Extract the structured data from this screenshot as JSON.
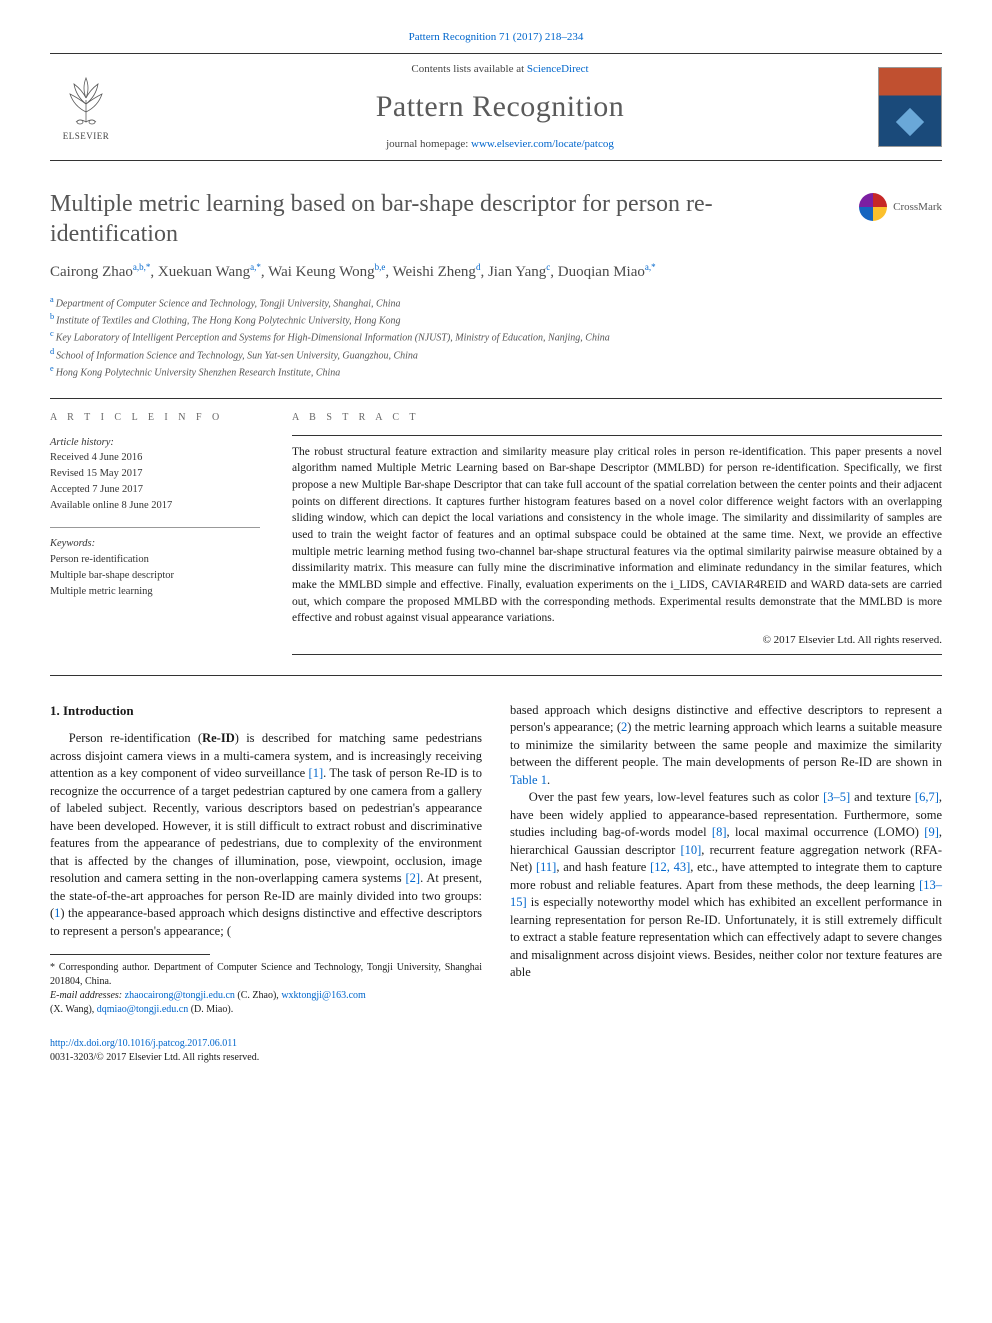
{
  "header": {
    "citation": "Pattern Recognition 71 (2017) 218–234",
    "contents_line_prefix": "Contents lists available at ",
    "contents_link": "ScienceDirect",
    "journal_title": "Pattern Recognition",
    "homepage_prefix": "journal homepage: ",
    "homepage_link": "www.elsevier.com/locate/patcog",
    "publisher": "ELSEVIER"
  },
  "crossmark": {
    "label": "CrossMark"
  },
  "title": "Multiple metric learning based on bar-shape descriptor for person re-identification",
  "authors_html": "Cairong Zhao<sup>a,b,*</sup>, Xuekuan Wang<sup>a,*</sup>, Wai Keung Wong<sup>b,e</sup>, Weishi Zheng<sup>d</sup>, Jian Yang<sup>c</sup>, Duoqian Miao<sup>a,*</sup>",
  "affiliations": [
    {
      "sup": "a",
      "text": "Department of Computer Science and Technology, Tongji University, Shanghai, China"
    },
    {
      "sup": "b",
      "text": "Institute of Textiles and Clothing, The Hong Kong Polytechnic University, Hong Kong"
    },
    {
      "sup": "c",
      "text": "Key Laboratory of Intelligent Perception and Systems for High-Dimensional Information (NJUST), Ministry of Education, Nanjing, China"
    },
    {
      "sup": "d",
      "text": "School of Information Science and Technology, Sun Yat-sen University, Guangzhou, China"
    },
    {
      "sup": "e",
      "text": "Hong Kong Polytechnic University Shenzhen Research Institute, China"
    }
  ],
  "article_info": {
    "label": "A R T I C L E   I N F O",
    "history_label": "Article history:",
    "received": "Received 4 June 2016",
    "revised": "Revised 15 May 2017",
    "accepted": "Accepted 7 June 2017",
    "online": "Available online 8 June 2017",
    "keywords_label": "Keywords:",
    "keywords": [
      "Person re-identification",
      "Multiple bar-shape descriptor",
      "Multiple metric learning"
    ]
  },
  "abstract": {
    "label": "A B S T R A C T",
    "text": "The robust structural feature extraction and similarity measure play critical roles in person re-identification. This paper presents a novel algorithm named Multiple Metric Learning based on Bar-shape Descriptor (MMLBD) for person re-identification. Specifically, we first propose a new Multiple Bar-shape Descriptor that can take full account of the spatial correlation between the center points and their adjacent points on different directions. It captures further histogram features based on a novel color difference weight factors with an overlapping sliding window, which can depict the local variations and consistency in the whole image. The similarity and dissimilarity of samples are used to train the weight factor of features and an optimal subspace could be obtained at the same time. Next, we provide an effective multiple metric learning method fusing two-channel bar-shape structural features via the optimal similarity pairwise measure obtained by a dissimilarity matrix. This measure can fully mine the discriminative information and eliminate redundancy in the similar features, which make the MMLBD simple and effective. Finally, evaluation experiments on the i_LIDS, CAVIAR4REID and WARD data-sets are carried out, which compare the proposed MMLBD with the corresponding methods. Experimental results demonstrate that the MMLBD is more effective and robust against visual appearance variations.",
    "copyright": "© 2017 Elsevier Ltd. All rights reserved."
  },
  "intro": {
    "heading": "1. Introduction",
    "para1_a": "Person re-identification (",
    "para1_bold": "Re-ID",
    "para1_b": ") is described for matching same pedestrians across disjoint camera views in a multi-camera system, and is increasingly receiving attention as a key component of video surveillance ",
    "ref1": "[1]",
    "para1_c": ". The task of person Re-ID is to recognize the occurrence of a target pedestrian captured by one camera from a gallery of labeled subject. Recently, various descriptors based on pedestrian's appearance have been developed. However, it is still difficult to extract robust and discriminative features from the appearance of pedestrians, due to complexity of the environment that is affected by the changes of illumination, pose, viewpoint, occlusion, image resolution and camera setting in the non-overlapping camera systems ",
    "ref2": "[2]",
    "para1_d": ". At present, the state-of-the-art approaches for person Re-ID are mainly divided into two groups: (",
    "ref_one": "1",
    "para1_e": ") the appearance-based approach which designs distinctive and effective descriptors to represent a person's appearance; (",
    "ref_two": "2",
    "para1_f": ") the metric learning approach which learns a suitable measure to minimize the similarity between the same people and maximize the similarity between the different people. The main developments of person Re-ID are shown in ",
    "table1": "Table 1",
    "para1_g": ".",
    "para2_a": "Over the past few years, low-level features such as color ",
    "ref3_5": "[3–5]",
    "para2_b": " and texture ",
    "ref6_7": "[6,7]",
    "para2_c": ", have been widely applied to appearance-based representation. Furthermore, some studies including bag-of-words model ",
    "ref8": "[8]",
    "para2_d": ", local maximal occurrence (LOMO) ",
    "ref9": "[9]",
    "para2_e": ", hierarchical Gaussian descriptor ",
    "ref10": "[10]",
    "para2_f": ", recurrent feature aggregation network (RFA-Net) ",
    "ref11": "[11]",
    "para2_g": ", and hash feature ",
    "ref12_43": "[12, 43]",
    "para2_h": ", etc., have attempted to integrate them to capture more robust and reliable features. Apart from these methods, the deep learning ",
    "ref13_15": "[13–15]",
    "para2_i": " is especially noteworthy model which has exhibited an excellent performance in learning representation for person Re-ID. Unfortunately, it is still extremely difficult to extract a stable feature representation which can effectively adapt to severe changes and misalignment across disjoint views. Besides, neither color nor texture features are able"
  },
  "footnotes": {
    "corresponding": "* Corresponding author. Department of Computer Science and Technology, Tongji University, Shanghai 201804, China.",
    "emails_label": "E-mail addresses: ",
    "email1": "zhaocairong@tongji.edu.cn",
    "email1_name": " (C. Zhao), ",
    "email2": "wxktongji@163.com",
    "email2_name": " (X. Wang), ",
    "email3": "dqmiao@tongji.edu.cn",
    "email3_name": " (D. Miao)."
  },
  "footer": {
    "doi": "http://dx.doi.org/10.1016/j.patcog.2017.06.011",
    "issn_line": "0031-3203/© 2017 Elsevier Ltd. All rights reserved."
  },
  "colors": {
    "link": "#0066cc",
    "text": "#1a1a1a",
    "title_gray": "#555555",
    "rule": "#333333"
  }
}
